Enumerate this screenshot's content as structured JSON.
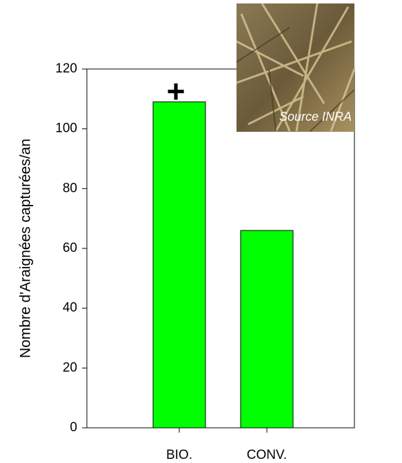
{
  "chart_data": {
    "type": "bar",
    "y_label": "Nombre d'Araignées capturées/an",
    "categories": [
      "BIO.",
      "CONV."
    ],
    "values": [
      109,
      66
    ],
    "color": "#00ff00",
    "ylim": [
      0,
      120
    ],
    "yticks": [
      0,
      20,
      40,
      60,
      80,
      100,
      120
    ],
    "annotation": "+",
    "photo_caption": "Source INRA"
  }
}
